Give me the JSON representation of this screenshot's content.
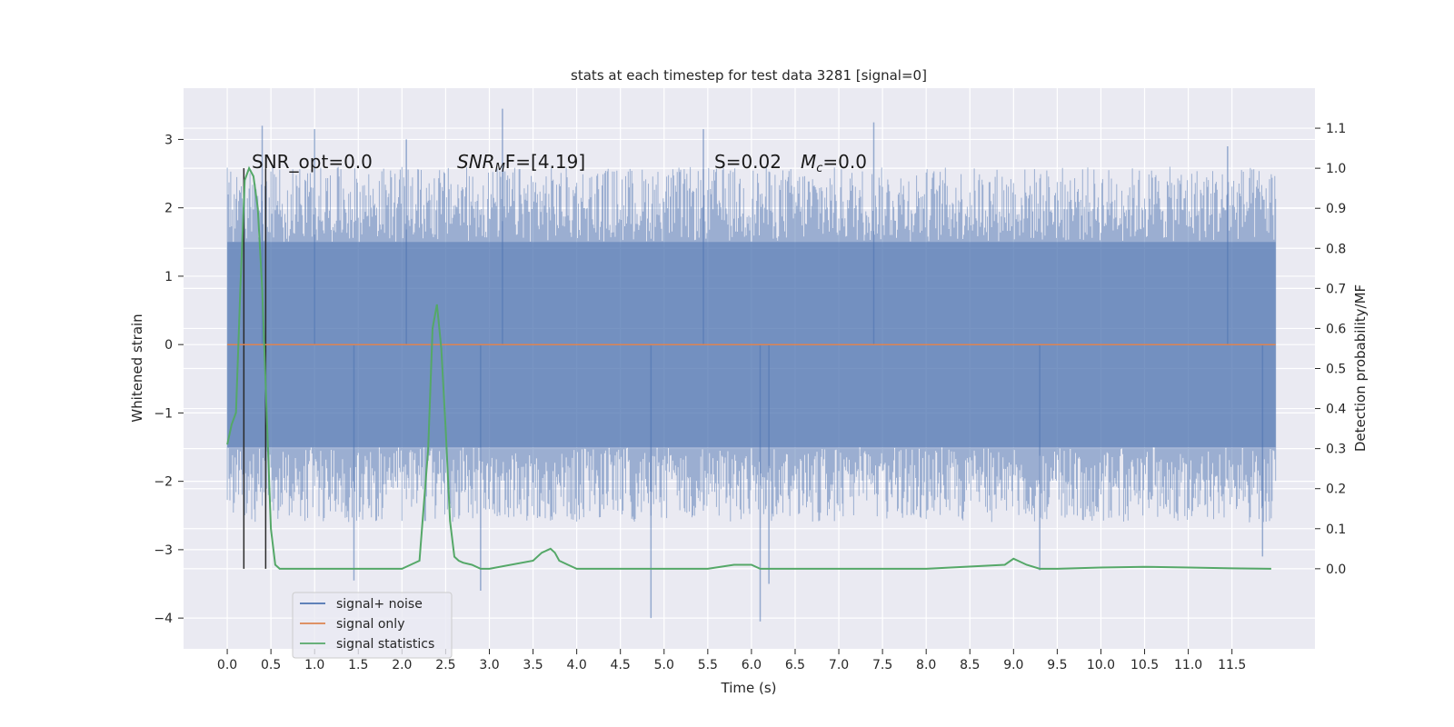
{
  "chart_data": {
    "type": "line",
    "title": "stats at each timestep for test data 3281 [signal=0]",
    "xlabel": "Time (s)",
    "ylabel_left": "Whitened strain",
    "ylabel_right": "Detection probability/MF",
    "xlim": [
      -0.5,
      12.45
    ],
    "ylim_left": [
      -4.45,
      3.75
    ],
    "ylim_right": [
      -0.2,
      1.2
    ],
    "x_ticks": [
      "0.0",
      "0.5",
      "1.0",
      "1.5",
      "2.0",
      "2.5",
      "3.0",
      "3.5",
      "4.0",
      "4.5",
      "5.0",
      "5.5",
      "6.0",
      "6.5",
      "7.0",
      "7.5",
      "8.0",
      "8.5",
      "9.0",
      "9.5",
      "10.0",
      "10.5",
      "11.0",
      "11.5"
    ],
    "y_left_ticks": [
      "−4",
      "−3",
      "−2",
      "−1",
      "0",
      "1",
      "2",
      "3"
    ],
    "y_right_ticks": [
      "0.0",
      "0.1",
      "0.2",
      "0.3",
      "0.4",
      "0.5",
      "0.6",
      "0.7",
      "0.8",
      "0.9",
      "1.0",
      "1.1"
    ],
    "grid": true,
    "legend_placement": "lower-left",
    "annotations": {
      "snr_opt": "SNR_opt=0.0",
      "snr_mf_base": "SNR",
      "snr_mf_sub": "M",
      "snr_mf_rest": "F=[4.19]",
      "s_text": "S=0.02",
      "mc_base": "M",
      "mc_sub": "c",
      "mc_rest": "=0.0"
    },
    "vertical_markers_x": [
      0.19,
      0.44
    ],
    "noise_series": {
      "name": "signal+ noise",
      "x_range": [
        0.0,
        12.0
      ],
      "band_inner": [
        -1.5,
        1.5
      ],
      "band_outer": [
        -2.6,
        2.6
      ],
      "spike_extremes": [
        {
          "x": 0.4,
          "y": 3.2
        },
        {
          "x": 1.0,
          "y": 3.15
        },
        {
          "x": 1.45,
          "y": -3.45
        },
        {
          "x": 2.05,
          "y": 3.0
        },
        {
          "x": 2.9,
          "y": -3.6
        },
        {
          "x": 3.15,
          "y": 3.45
        },
        {
          "x": 4.85,
          "y": -4.0
        },
        {
          "x": 5.45,
          "y": 3.15
        },
        {
          "x": 6.1,
          "y": -4.05
        },
        {
          "x": 6.2,
          "y": -3.5
        },
        {
          "x": 7.4,
          "y": 3.25
        },
        {
          "x": 9.3,
          "y": -3.3
        },
        {
          "x": 11.85,
          "y": -3.1
        },
        {
          "x": 11.45,
          "y": 2.9
        }
      ]
    },
    "series": [
      {
        "name": "signal only",
        "color": "#dd8452",
        "x": [
          0.0,
          12.0
        ],
        "y": [
          0.0,
          0.0
        ]
      },
      {
        "name": "signal statistics",
        "color": "#55a868",
        "axis": "right",
        "x": [
          0.0,
          0.05,
          0.1,
          0.15,
          0.2,
          0.25,
          0.3,
          0.35,
          0.4,
          0.45,
          0.5,
          0.55,
          0.6,
          0.65,
          0.8,
          1.0,
          2.0,
          2.2,
          2.3,
          2.35,
          2.4,
          2.45,
          2.5,
          2.55,
          2.6,
          2.65,
          2.7,
          2.8,
          2.9,
          3.0,
          3.5,
          3.6,
          3.7,
          3.75,
          3.8,
          3.9,
          4.0,
          4.2,
          4.4,
          4.5,
          5.0,
          5.5,
          5.8,
          6.0,
          6.1,
          6.3,
          7.0,
          8.0,
          8.9,
          9.0,
          9.05,
          9.15,
          9.3,
          9.5,
          10.0,
          10.5,
          11.0,
          11.5,
          11.95
        ],
        "y": [
          0.31,
          0.36,
          0.39,
          0.7,
          0.97,
          1.0,
          0.98,
          0.9,
          0.7,
          0.4,
          0.1,
          0.01,
          0.0,
          0.0,
          0.0,
          0.0,
          0.0,
          0.02,
          0.3,
          0.6,
          0.66,
          0.55,
          0.35,
          0.12,
          0.03,
          0.02,
          0.015,
          0.01,
          0.0,
          0.0,
          0.02,
          0.04,
          0.05,
          0.04,
          0.02,
          0.01,
          0.0,
          0.0,
          0.0,
          0.0,
          0.0,
          0.0,
          0.01,
          0.01,
          0.0,
          0.0,
          0.0,
          0.0,
          0.01,
          0.025,
          0.02,
          0.01,
          0.0,
          0.0,
          0.003,
          0.005,
          0.003,
          0.001,
          0.0
        ]
      }
    ],
    "legend": [
      {
        "label": "signal+ noise",
        "color": "#4c72b0"
      },
      {
        "label": "signal only",
        "color": "#dd8452"
      },
      {
        "label": "signal statistics",
        "color": "#55a868"
      }
    ],
    "colors": {
      "background": "#eaeaf2",
      "grid": "#ffffff",
      "noise": "#4c72b0",
      "marker": "#2b2b2b"
    }
  }
}
